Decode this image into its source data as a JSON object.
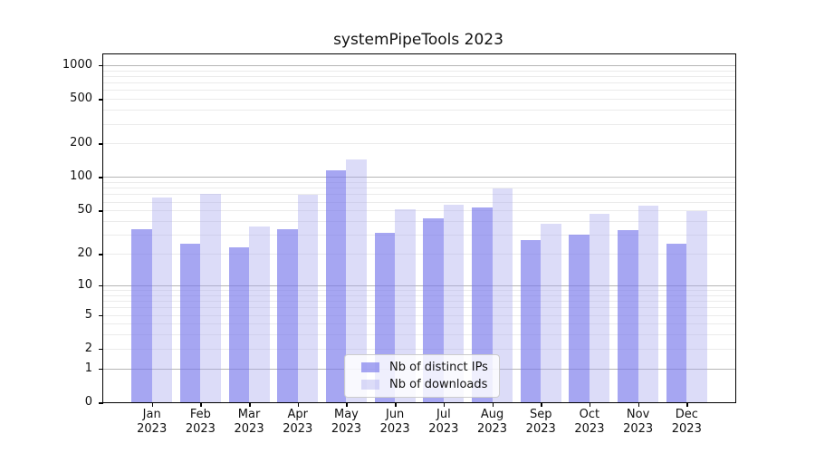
{
  "chart_data": {
    "type": "bar",
    "title": "systemPipeTools 2023",
    "categories": [
      "Jan",
      "Feb",
      "Mar",
      "Apr",
      "May",
      "Jun",
      "Jul",
      "Aug",
      "Sep",
      "Oct",
      "Nov",
      "Dec"
    ],
    "year": "2023",
    "series": [
      {
        "name": "Nb of distinct IPs",
        "color": "rgba(118,118,235,0.65)",
        "color_hex": "#a6a6f2",
        "values": [
          34,
          25,
          23,
          34,
          116,
          31,
          42,
          53,
          27,
          30,
          33,
          25
        ]
      },
      {
        "name": "Nb of downloads",
        "color": "rgba(168,168,238,0.40)",
        "color_hex": "#dcdcf8",
        "values": [
          65,
          70,
          36,
          69,
          143,
          51,
          56,
          79,
          38,
          47,
          55,
          49
        ]
      }
    ],
    "yticks": [
      1000,
      500,
      200,
      100,
      50,
      20,
      10,
      5,
      2,
      1,
      0
    ],
    "yscale": "log1p",
    "ylim": [
      0,
      1250
    ],
    "grid": true,
    "legend_position": "lower center"
  }
}
